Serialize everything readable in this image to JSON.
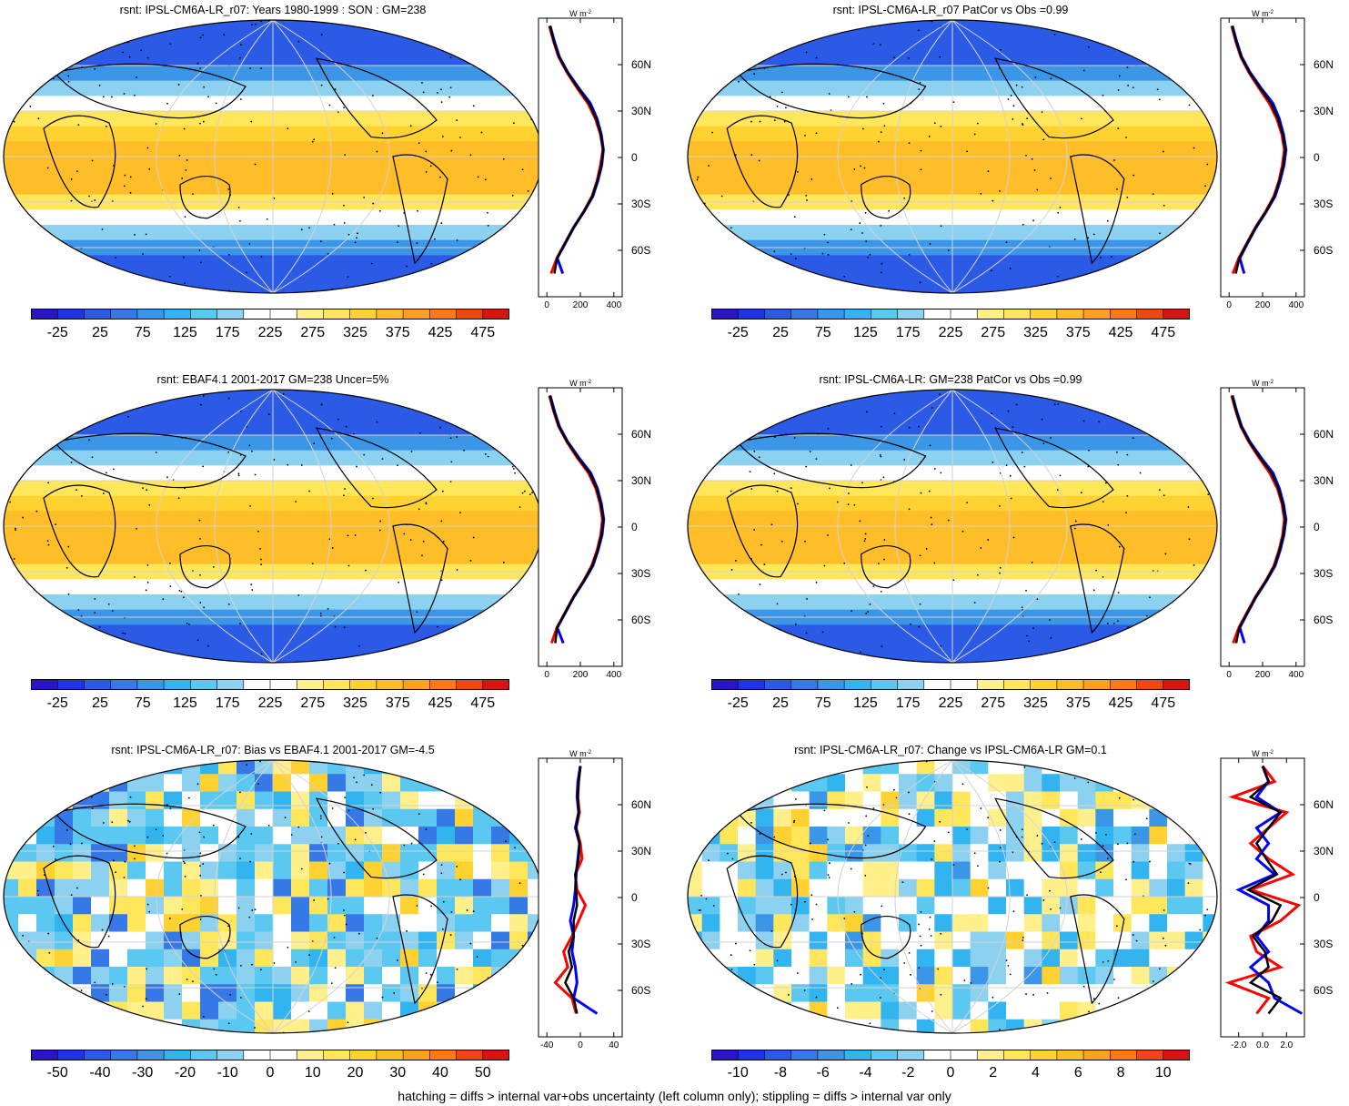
{
  "footnote": "hatching = diffs > internal var+obs uncertainty (left column only); stippling = diffs > internal var only",
  "colors": {
    "ramp": [
      "#2a14c8",
      "#1e32e6",
      "#2a5ae6",
      "#3678e6",
      "#3c96e8",
      "#32b4f0",
      "#5ac8f0",
      "#8cd2f0",
      "#ffffff",
      "#ffffff",
      "#fff08c",
      "#ffe65a",
      "#ffd232",
      "#ffbe28",
      "#ffa01e",
      "#ff7814",
      "#f04614",
      "#d7140f"
    ],
    "land": "#000000",
    "grid": "#d2d2d2",
    "model_line": "#ff0000",
    "obs_line": "#0000ff",
    "mean_line": "#000000"
  },
  "chart_data": [
    {
      "id": "model-climatology",
      "type": "heatmap",
      "title": "rsnt: IPSL-CM6A-LR_r07: Years 1980-1999 : SON : GM=238",
      "colorbar": {
        "ticks": [
          "-25",
          "25",
          "75",
          "125",
          "175",
          "225",
          "275",
          "325",
          "375",
          "425",
          "475"
        ]
      },
      "profile": {
        "xlabel": "W m",
        "xlabel_sup": "-2",
        "xticks": [
          "0",
          "200",
          "400"
        ],
        "xlim": [
          -50,
          450
        ],
        "yticks": [
          "60N",
          "30N",
          "0",
          "30S",
          "60S"
        ],
        "lat": [
          85,
          75,
          65,
          55,
          45,
          35,
          25,
          15,
          5,
          -5,
          -15,
          -25,
          -35,
          -45,
          -55,
          -65,
          -75
        ],
        "series": [
          {
            "color": "red",
            "values": [
              15,
              40,
              70,
              120,
              180,
              245,
              290,
              320,
              335,
              320,
              300,
              270,
              220,
              160,
              110,
              60,
              25
            ]
          },
          {
            "color": "blue",
            "values": [
              20,
              45,
              75,
              125,
              190,
              260,
              300,
              325,
              338,
              328,
              305,
              275,
              222,
              162,
              112,
              62,
              95
            ]
          },
          {
            "color": "black",
            "values": [
              18,
              42,
              72,
              122,
              185,
              252,
              295,
              322,
              336,
              325,
              302,
              272,
              221,
              161,
              111,
              61,
              45
            ]
          }
        ]
      }
    },
    {
      "id": "model-patcor",
      "type": "heatmap",
      "title": "rsnt: IPSL-CM6A-LR_r07 PatCor vs Obs =0.99",
      "colorbar": {
        "ticks": [
          "-25",
          "25",
          "75",
          "125",
          "175",
          "225",
          "275",
          "325",
          "375",
          "425",
          "475"
        ]
      },
      "profile": {
        "xlabel": "W m",
        "xlabel_sup": "-2",
        "xticks": [
          "0",
          "200",
          "400"
        ],
        "xlim": [
          -50,
          450
        ],
        "yticks": [
          "60N",
          "30N",
          "0",
          "30S",
          "60S"
        ],
        "lat": [
          85,
          75,
          65,
          55,
          45,
          35,
          25,
          15,
          5,
          -5,
          -15,
          -25,
          -35,
          -45,
          -55,
          -65,
          -75
        ],
        "series": [
          {
            "color": "red",
            "values": [
              15,
              40,
              70,
              118,
              178,
              240,
              285,
              315,
              330,
              318,
              298,
              268,
              218,
              158,
              108,
              58,
              22
            ]
          },
          {
            "color": "blue",
            "values": [
              20,
              45,
              75,
              125,
              190,
              262,
              300,
              325,
              340,
              328,
              305,
              275,
              222,
              162,
              112,
              64,
              90
            ]
          },
          {
            "color": "black",
            "values": [
              18,
              42,
              72,
              121,
              184,
              250,
              292,
              320,
              335,
              323,
              301,
              271,
              220,
              160,
              110,
              61,
              40
            ]
          }
        ]
      }
    },
    {
      "id": "obs-climatology",
      "type": "heatmap",
      "title": "rsnt: EBAF4.1 2001-2017 GM=238 Uncer=5%",
      "colorbar": {
        "ticks": [
          "-25",
          "25",
          "75",
          "125",
          "175",
          "225",
          "275",
          "325",
          "375",
          "425",
          "475"
        ]
      },
      "profile": {
        "xlabel": "W m",
        "xlabel_sup": "-2",
        "xticks": [
          "0",
          "200",
          "400"
        ],
        "xlim": [
          -50,
          450
        ],
        "yticks": [
          "60N",
          "30N",
          "0",
          "30S",
          "60S"
        ],
        "lat": [
          85,
          75,
          65,
          55,
          45,
          35,
          25,
          15,
          5,
          -5,
          -15,
          -25,
          -35,
          -45,
          -55,
          -65,
          -75
        ],
        "series": [
          {
            "color": "red",
            "values": [
              15,
              40,
              70,
              120,
              180,
              248,
              292,
              318,
              332,
              322,
              300,
              268,
              218,
              160,
              110,
              60,
              28
            ]
          },
          {
            "color": "blue",
            "values": [
              20,
              45,
              75,
              125,
              190,
              262,
              302,
              326,
              340,
              330,
              306,
              275,
              222,
              162,
              112,
              62,
              98
            ]
          },
          {
            "color": "black",
            "values": [
              18,
              42,
              72,
              122,
              185,
              255,
              297,
              322,
              336,
              326,
              303,
              271,
              220,
              161,
              111,
              61,
              50
            ]
          }
        ]
      }
    },
    {
      "id": "mmm-climatology",
      "type": "heatmap",
      "title": "rsnt: IPSL-CM6A-LR: GM=238 PatCor vs Obs =0.99",
      "colorbar": {
        "ticks": [
          "-25",
          "25",
          "75",
          "125",
          "175",
          "225",
          "275",
          "325",
          "375",
          "425",
          "475"
        ]
      },
      "profile": {
        "xlabel": "W m",
        "xlabel_sup": "-2",
        "xticks": [
          "0",
          "200",
          "400"
        ],
        "xlim": [
          -50,
          450
        ],
        "yticks": [
          "60N",
          "30N",
          "0",
          "30S",
          "60S"
        ],
        "lat": [
          85,
          75,
          65,
          55,
          45,
          35,
          25,
          15,
          5,
          -5,
          -15,
          -25,
          -35,
          -45,
          -55,
          -65,
          -75
        ],
        "series": [
          {
            "color": "red",
            "values": [
              15,
              40,
              70,
              118,
              178,
              242,
              288,
              316,
              330,
              320,
              298,
              268,
              218,
              158,
              108,
              58,
              24
            ]
          },
          {
            "color": "blue",
            "values": [
              20,
              45,
              75,
              125,
              190,
              262,
              300,
              325,
              340,
              328,
              305,
              275,
              222,
              162,
              112,
              64,
              92
            ]
          },
          {
            "color": "black",
            "values": [
              18,
              42,
              72,
              121,
              184,
              252,
              294,
              320,
              335,
              324,
              301,
              271,
              220,
              160,
              110,
              61,
              42
            ]
          }
        ]
      }
    },
    {
      "id": "bias",
      "type": "heatmap",
      "title": "rsnt: IPSL-CM6A-LR_r07: Bias vs EBAF4.1 2001-2017  GM=-4.5",
      "colorbar": {
        "ticks": [
          "-50",
          "-40",
          "-30",
          "-20",
          "-10",
          "0",
          "10",
          "20",
          "30",
          "40",
          "50"
        ]
      },
      "profile": {
        "xlabel": "W m",
        "xlabel_sup": "-2",
        "xticks": [
          "-40",
          "0",
          "40"
        ],
        "xlim": [
          -50,
          50
        ],
        "yticks": [
          "60N",
          "30N",
          "0",
          "30S",
          "60S"
        ],
        "lat": [
          85,
          75,
          65,
          55,
          45,
          35,
          25,
          15,
          5,
          -5,
          -15,
          -25,
          -35,
          -45,
          -55,
          -65,
          -75
        ],
        "series": [
          {
            "color": "red",
            "values": [
              0,
              -2,
              -3,
              -1,
              -5,
              0,
              2,
              -6,
              -4,
              6,
              -2,
              -10,
              -20,
              -15,
              -30,
              -10,
              -5
            ]
          },
          {
            "color": "blue",
            "values": [
              0,
              -3,
              -4,
              -2,
              -6,
              -1,
              -3,
              -5,
              -6,
              -8,
              -12,
              -8,
              -10,
              -6,
              -4,
              -8,
              20
            ]
          },
          {
            "color": "black",
            "values": [
              0,
              -2,
              -3,
              -2,
              -5,
              -1,
              -2,
              -6,
              -5,
              -4,
              -8,
              -8,
              -14,
              -10,
              -18,
              -8,
              -4
            ]
          }
        ]
      }
    },
    {
      "id": "change",
      "type": "heatmap",
      "title": "rsnt: IPSL-CM6A-LR_r07: Change vs IPSL-CM6A-LR GM=0.1",
      "colorbar": {
        "ticks": [
          "-10",
          "-8",
          "-6",
          "-4",
          "-2",
          "0",
          "2",
          "4",
          "6",
          "8",
          "10"
        ]
      },
      "profile": {
        "xlabel": "W m",
        "xlabel_sup": "-2",
        "xticks": [
          "-2.0",
          "0.0",
          "2.0"
        ],
        "xlim": [
          -3.5,
          3.5
        ],
        "yticks": [
          "60N",
          "30N",
          "0",
          "30S",
          "60S"
        ],
        "lat": [
          85,
          75,
          65,
          55,
          45,
          35,
          25,
          15,
          5,
          -5,
          -15,
          -25,
          -35,
          -45,
          -55,
          -65,
          -75
        ],
        "series": [
          {
            "color": "red",
            "values": [
              0,
              1,
              -2.5,
              2,
              0.5,
              -1,
              0.5,
              2.5,
              -1,
              3,
              1.5,
              -1,
              -0.5,
              1.5,
              -2.8,
              0.5,
              -0.5
            ]
          },
          {
            "color": "blue",
            "values": [
              0,
              0.5,
              -0.5,
              1.5,
              -0.5,
              0.5,
              -0.5,
              1,
              -2,
              0.5,
              0.5,
              -0.5,
              0.5,
              -1,
              0.5,
              1,
              3.3
            ]
          },
          {
            "color": "black",
            "values": [
              0,
              0.5,
              -1,
              1.5,
              0.5,
              -0.5,
              0.3,
              1.2,
              -1.2,
              1.5,
              0.8,
              -0.8,
              0.2,
              0.5,
              -1,
              1.5,
              0.5
            ]
          }
        ]
      }
    }
  ]
}
